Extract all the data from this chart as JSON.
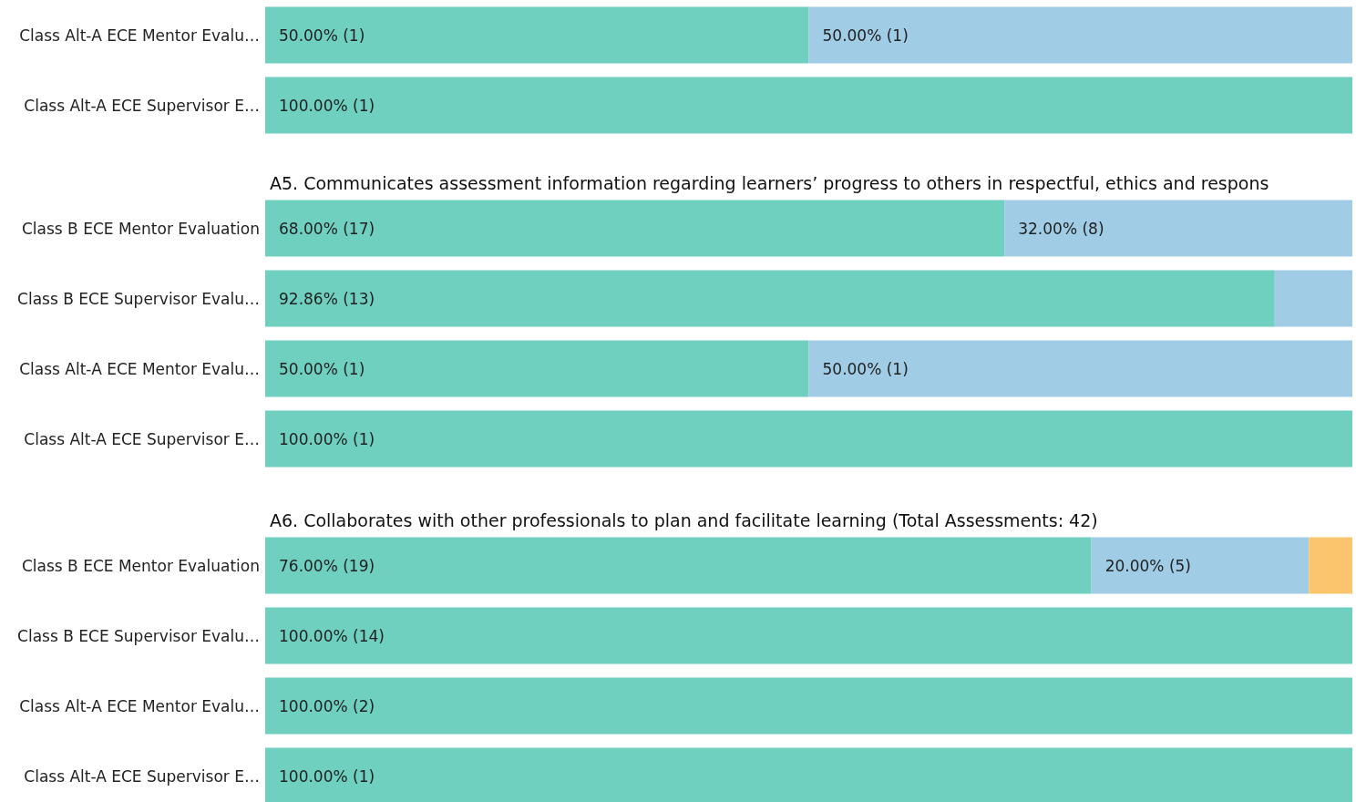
{
  "chart_data": [
    {
      "type": "bar",
      "orientation": "horizontal",
      "stacked": true,
      "xlim": [
        0,
        100
      ],
      "categories": [
        "Class Alt-A ECE Mentor Evalu…",
        "Class Alt-A ECE Supervisor E…"
      ],
      "series": [
        {
          "color": "#6fd0bf",
          "values": [
            50,
            100
          ],
          "value_labels": [
            "50.00% (1)",
            "100.00% (1)"
          ]
        },
        {
          "color": "#a0cce6",
          "values": [
            50,
            null
          ],
          "value_labels": [
            "50.00% (1)",
            null
          ]
        }
      ]
    },
    {
      "type": "bar",
      "orientation": "horizontal",
      "stacked": true,
      "xlim": [
        0,
        100
      ],
      "title": "A5. Communicates assessment information regarding learners’ progress to others in respectful, ethics and respons",
      "categories": [
        "Class B ECE Mentor Evaluation",
        "Class B ECE Supervisor Evalu…",
        "Class Alt-A ECE Mentor Evalu…",
        "Class Alt-A ECE Supervisor E…"
      ],
      "series": [
        {
          "color": "#6fd0bf",
          "values": [
            68,
            92.86,
            50,
            100
          ],
          "value_labels": [
            "68.00% (17)",
            "92.86% (13)",
            "50.00% (1)",
            "100.00% (1)"
          ]
        },
        {
          "color": "#a0cce6",
          "values": [
            32,
            7.14,
            50,
            null
          ],
          "value_labels": [
            "32.00% (8)",
            null,
            "50.00% (1)",
            null
          ]
        }
      ]
    },
    {
      "type": "bar",
      "orientation": "horizontal",
      "stacked": true,
      "xlim": [
        0,
        100
      ],
      "title": "A6. Collaborates with other professionals to plan and facilitate learning (Total Assessments: 42)",
      "categories": [
        "Class B ECE Mentor Evaluation",
        "Class B ECE Supervisor Evalu…",
        "Class Alt-A ECE Mentor Evalu…",
        "Class Alt-A ECE Supervisor E…"
      ],
      "series": [
        {
          "color": "#6fd0bf",
          "values": [
            76,
            100,
            100,
            100
          ],
          "value_labels": [
            "76.00% (19)",
            "100.00% (14)",
            "100.00% (2)",
            "100.00% (1)"
          ]
        },
        {
          "color": "#a0cce6",
          "values": [
            20,
            null,
            null,
            null
          ],
          "value_labels": [
            "20.00% (5)",
            null,
            null,
            null
          ]
        },
        {
          "color": "#fbc56d",
          "values": [
            4,
            null,
            null,
            null
          ],
          "value_labels": [
            null,
            null,
            null,
            null
          ]
        }
      ]
    }
  ]
}
